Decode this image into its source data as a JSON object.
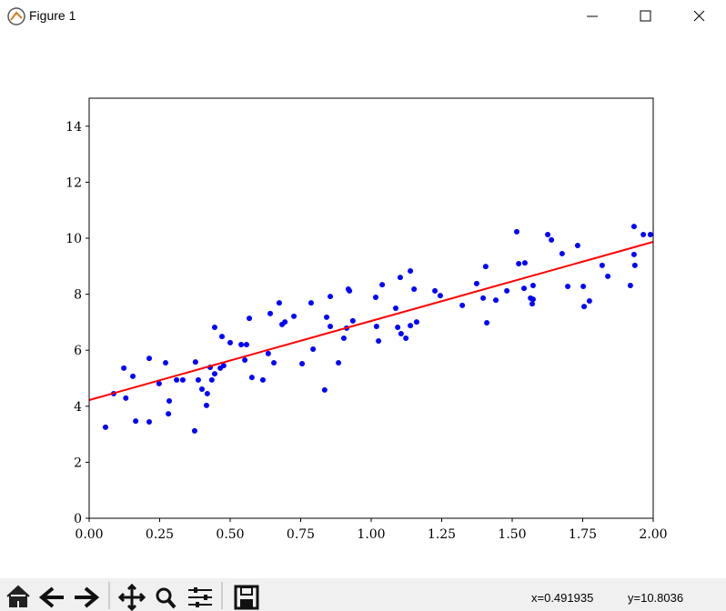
{
  "window": {
    "title": "Figure 1"
  },
  "chart_data": {
    "type": "scatter",
    "xlim": [
      0,
      2
    ],
    "ylim": [
      0,
      15
    ],
    "xticks": [
      {
        "value": 0,
        "label": "0.00"
      },
      {
        "value": 0.25,
        "label": "0.25"
      },
      {
        "value": 0.5,
        "label": "0.50"
      },
      {
        "value": 0.75,
        "label": "0.75"
      },
      {
        "value": 1,
        "label": "1.00"
      },
      {
        "value": 1.25,
        "label": "1.25"
      },
      {
        "value": 1.5,
        "label": "1.50"
      },
      {
        "value": 1.75,
        "label": "1.75"
      },
      {
        "value": 2,
        "label": "2.00"
      }
    ],
    "yticks": [
      0,
      2,
      4,
      6,
      8,
      10,
      12,
      14
    ],
    "grid": false,
    "series": [
      {
        "marker": "dot",
        "color": "#0000ff",
        "x": [
          0.058,
          0.087,
          0.123,
          0.13,
          0.155,
          0.165,
          0.213,
          0.213,
          0.248,
          0.271,
          0.284,
          0.281,
          0.31,
          0.332,
          0.374,
          0.377,
          0.387,
          0.4,
          0.416,
          0.419,
          0.429,
          0.435,
          0.445,
          0.445,
          0.465,
          0.471,
          0.477,
          0.5,
          0.539,
          0.552,
          0.558,
          0.568,
          0.577,
          0.616,
          0.635,
          0.642,
          0.655,
          0.674,
          0.684,
          0.694,
          0.726,
          0.755,
          0.787,
          0.794,
          0.835,
          0.842,
          0.855,
          0.855,
          0.884,
          0.903,
          0.913,
          0.919,
          0.923,
          0.935,
          1.016,
          1.019,
          1.026,
          1.039,
          1.087,
          1.094,
          1.103,
          1.106,
          1.123,
          1.139,
          1.139,
          1.152,
          1.161,
          1.226,
          1.245,
          1.323,
          1.374,
          1.397,
          1.406,
          1.41,
          1.442,
          1.481,
          1.516,
          1.523,
          1.542,
          1.545,
          1.565,
          1.574,
          1.571,
          1.574,
          1.626,
          1.639,
          1.677,
          1.697,
          1.732,
          1.752,
          1.755,
          1.774,
          1.819,
          1.839,
          1.919,
          1.932,
          1.932,
          1.935,
          1.965,
          1.99
        ],
        "values": [
          3.25,
          4.45,
          5.36,
          4.29,
          5.07,
          3.47,
          5.71,
          3.44,
          4.81,
          5.55,
          4.19,
          3.73,
          4.94,
          4.94,
          3.12,
          5.58,
          4.94,
          4.61,
          4.03,
          4.45,
          5.39,
          4.94,
          5.16,
          6.82,
          5.36,
          6.49,
          5.45,
          6.27,
          6.2,
          5.65,
          6.2,
          7.14,
          5.03,
          4.94,
          5.88,
          7.31,
          5.55,
          7.69,
          6.92,
          7.01,
          7.21,
          5.52,
          7.69,
          6.04,
          4.58,
          7.18,
          7.92,
          6.85,
          5.55,
          6.43,
          6.79,
          8.18,
          8.12,
          7.05,
          7.89,
          6.85,
          6.33,
          8.34,
          7.5,
          6.82,
          8.6,
          6.59,
          6.43,
          8.83,
          6.88,
          8.18,
          7.01,
          8.12,
          7.95,
          7.6,
          8.38,
          7.86,
          8.99,
          6.98,
          7.79,
          8.12,
          10.23,
          9.09,
          8.21,
          9.12,
          7.86,
          8.31,
          7.66,
          7.82,
          10.13,
          9.94,
          9.45,
          8.28,
          9.74,
          8.28,
          7.56,
          7.76,
          9.03,
          8.64,
          8.31,
          10.42,
          9.42,
          9.03,
          10.13,
          10.13
        ]
      },
      {
        "marker": "line",
        "color": "#ff0000",
        "x": [
          0,
          2
        ],
        "values": [
          4.22,
          9.87
        ]
      }
    ]
  },
  "status": {
    "x": "x=0.491935",
    "y": "y=10.8036"
  }
}
